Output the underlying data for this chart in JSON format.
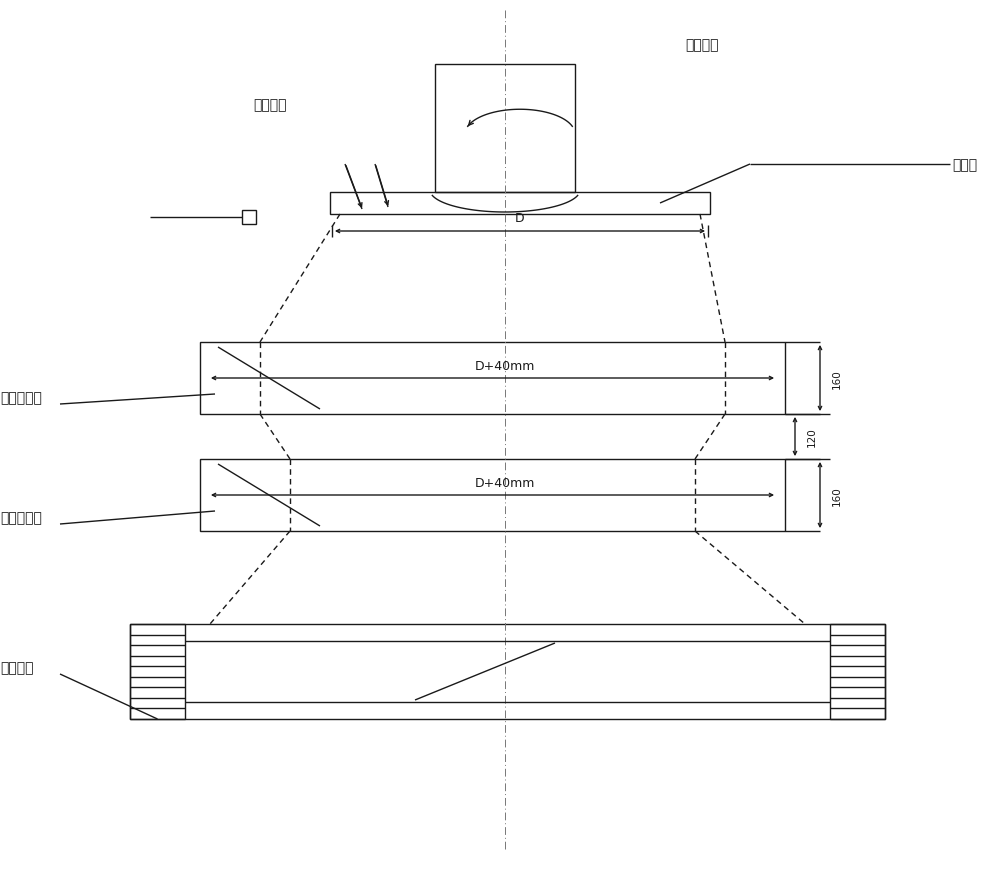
{
  "bg_color": "#ffffff",
  "line_color": "#1a1a1a",
  "fig_width": 10.0,
  "fig_height": 8.7,
  "dpi": 100,
  "labels": {
    "xiajianghuo": "下降淣火",
    "gongjianzixuan": "工件自转",
    "jiazhigun": "矫直辊",
    "gongpinganqiqi": "工频感应器",
    "zhongpinganqiqi": "中频感应器",
    "penlinshuiquan": "噴淋水圈",
    "D_label": "D",
    "D40_label": "D+40mm",
    "dim_160_1": "160",
    "dim_120": "120",
    "dim_160_2": "160"
  }
}
